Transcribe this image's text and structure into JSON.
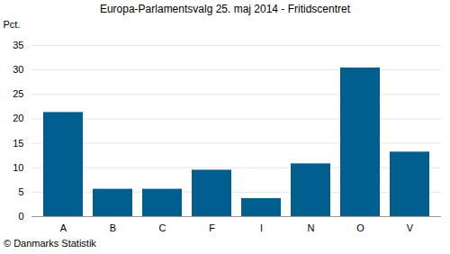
{
  "chart_data": {
    "type": "bar",
    "title": "Europa-Parlamentsvalg 25. maj 2014 - Fritidscentret",
    "caption": "© Danmarks Statistik",
    "y_label": "Pct.",
    "categories": [
      "A",
      "B",
      "C",
      "F",
      "I",
      "N",
      "O",
      "V"
    ],
    "values": [
      21.3,
      5.6,
      5.6,
      9.5,
      3.7,
      10.8,
      30.4,
      13.2
    ],
    "color": "#005f8f",
    "ylim": [
      0,
      35
    ],
    "yticks": [
      0,
      5,
      10,
      15,
      20,
      25,
      30,
      35
    ],
    "grid": true
  }
}
